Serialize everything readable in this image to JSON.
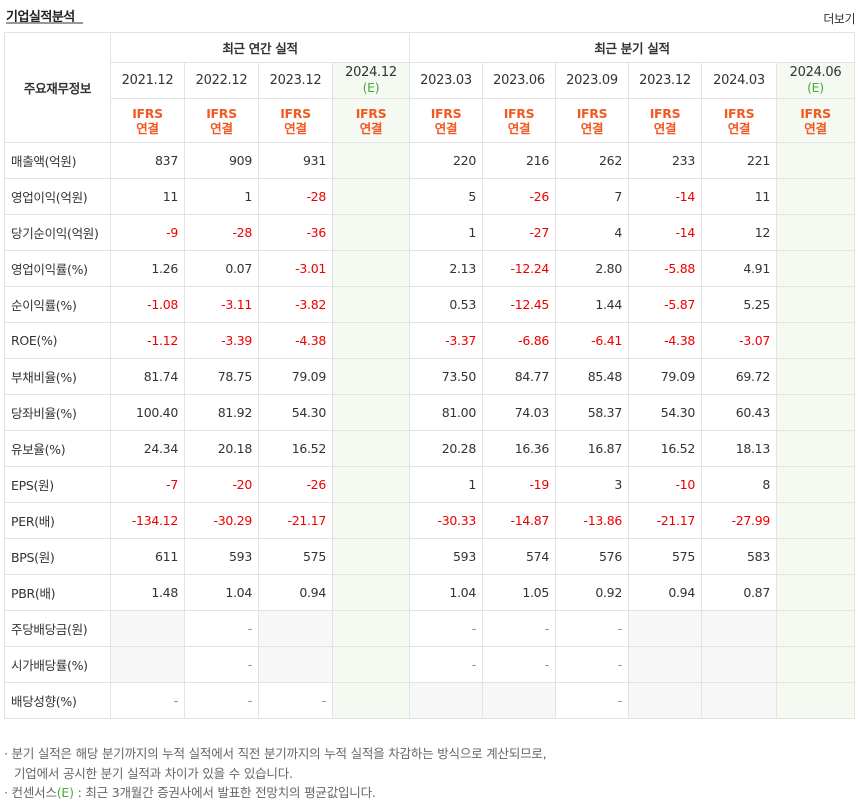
{
  "header": {
    "title": "기업실적분석",
    "more_label": "더보기"
  },
  "table": {
    "corner_label": "주요재무정보",
    "annual_group": "최근 연간 실적",
    "quarter_group": "최근 분기 실적",
    "estimate_mark": "(E)",
    "ifrs_line1": "IFRS",
    "ifrs_line2": "연결",
    "periods": [
      {
        "label": "2021.12",
        "estimate": false
      },
      {
        "label": "2022.12",
        "estimate": false
      },
      {
        "label": "2023.12",
        "estimate": false
      },
      {
        "label": "2024.12",
        "estimate": true
      },
      {
        "label": "2023.03",
        "estimate": false
      },
      {
        "label": "2023.06",
        "estimate": false
      },
      {
        "label": "2023.09",
        "estimate": false
      },
      {
        "label": "2023.12",
        "estimate": false
      },
      {
        "label": "2024.03",
        "estimate": false
      },
      {
        "label": "2024.06",
        "estimate": true
      }
    ],
    "rows": [
      {
        "label": "매출액(억원)",
        "values": [
          "837",
          "909",
          "931",
          "",
          "220",
          "216",
          "262",
          "233",
          "221",
          ""
        ]
      },
      {
        "label": "영업이익(억원)",
        "values": [
          "11",
          "1",
          "-28",
          "",
          "5",
          "-26",
          "7",
          "-14",
          "11",
          ""
        ]
      },
      {
        "label": "당기순이익(억원)",
        "values": [
          "-9",
          "-28",
          "-36",
          "",
          "1",
          "-27",
          "4",
          "-14",
          "12",
          ""
        ]
      },
      {
        "label": "영업이익률(%)",
        "values": [
          "1.26",
          "0.07",
          "-3.01",
          "",
          "2.13",
          "-12.24",
          "2.80",
          "-5.88",
          "4.91",
          ""
        ]
      },
      {
        "label": "순이익률(%)",
        "values": [
          "-1.08",
          "-3.11",
          "-3.82",
          "",
          "0.53",
          "-12.45",
          "1.44",
          "-5.87",
          "5.25",
          ""
        ]
      },
      {
        "label": "ROE(%)",
        "values": [
          "-1.12",
          "-3.39",
          "-4.38",
          "",
          "-3.37",
          "-6.86",
          "-6.41",
          "-4.38",
          "-3.07",
          ""
        ]
      },
      {
        "label": "부채비율(%)",
        "values": [
          "81.74",
          "78.75",
          "79.09",
          "",
          "73.50",
          "84.77",
          "85.48",
          "79.09",
          "69.72",
          ""
        ]
      },
      {
        "label": "당좌비율(%)",
        "values": [
          "100.40",
          "81.92",
          "54.30",
          "",
          "81.00",
          "74.03",
          "58.37",
          "54.30",
          "60.43",
          ""
        ]
      },
      {
        "label": "유보율(%)",
        "values": [
          "24.34",
          "20.18",
          "16.52",
          "",
          "20.28",
          "16.36",
          "16.87",
          "16.52",
          "18.13",
          ""
        ]
      },
      {
        "label": "EPS(원)",
        "values": [
          "-7",
          "-20",
          "-26",
          "",
          "1",
          "-19",
          "3",
          "-10",
          "8",
          ""
        ]
      },
      {
        "label": "PER(배)",
        "values": [
          "-134.12",
          "-30.29",
          "-21.17",
          "",
          "-30.33",
          "-14.87",
          "-13.86",
          "-21.17",
          "-27.99",
          ""
        ]
      },
      {
        "label": "BPS(원)",
        "values": [
          "611",
          "593",
          "575",
          "",
          "593",
          "574",
          "576",
          "575",
          "583",
          ""
        ]
      },
      {
        "label": "PBR(배)",
        "values": [
          "1.48",
          "1.04",
          "0.94",
          "",
          "1.04",
          "1.05",
          "0.92",
          "0.94",
          "0.87",
          ""
        ]
      },
      {
        "label": "주당배당금(원)",
        "values": [
          "",
          "-",
          "",
          "",
          "-",
          "-",
          "-",
          "",
          "",
          ""
        ]
      },
      {
        "label": "시가배당률(%)",
        "values": [
          "",
          "-",
          "",
          "",
          "-",
          "-",
          "-",
          "",
          "",
          ""
        ]
      },
      {
        "label": "배당성향(%)",
        "values": [
          "-",
          "-",
          "-",
          "",
          "",
          "",
          "-",
          "",
          "",
          ""
        ]
      }
    ]
  },
  "notes": {
    "line1": "· 분기 실적은 해당 분기까지의 누적 실적에서 직전 분기까지의 누적 실적을 차감하는 방식으로 계산되므로,",
    "line2": "기업에서 공시한 분기 실적과 차이가 있을 수 있습니다.",
    "line3_prefix": "· 컨센서스",
    "line3_mark": "(E)",
    "line3_suffix": " : 최근 3개월간 증권사에서 발표한 전망치의 평균값입니다."
  }
}
